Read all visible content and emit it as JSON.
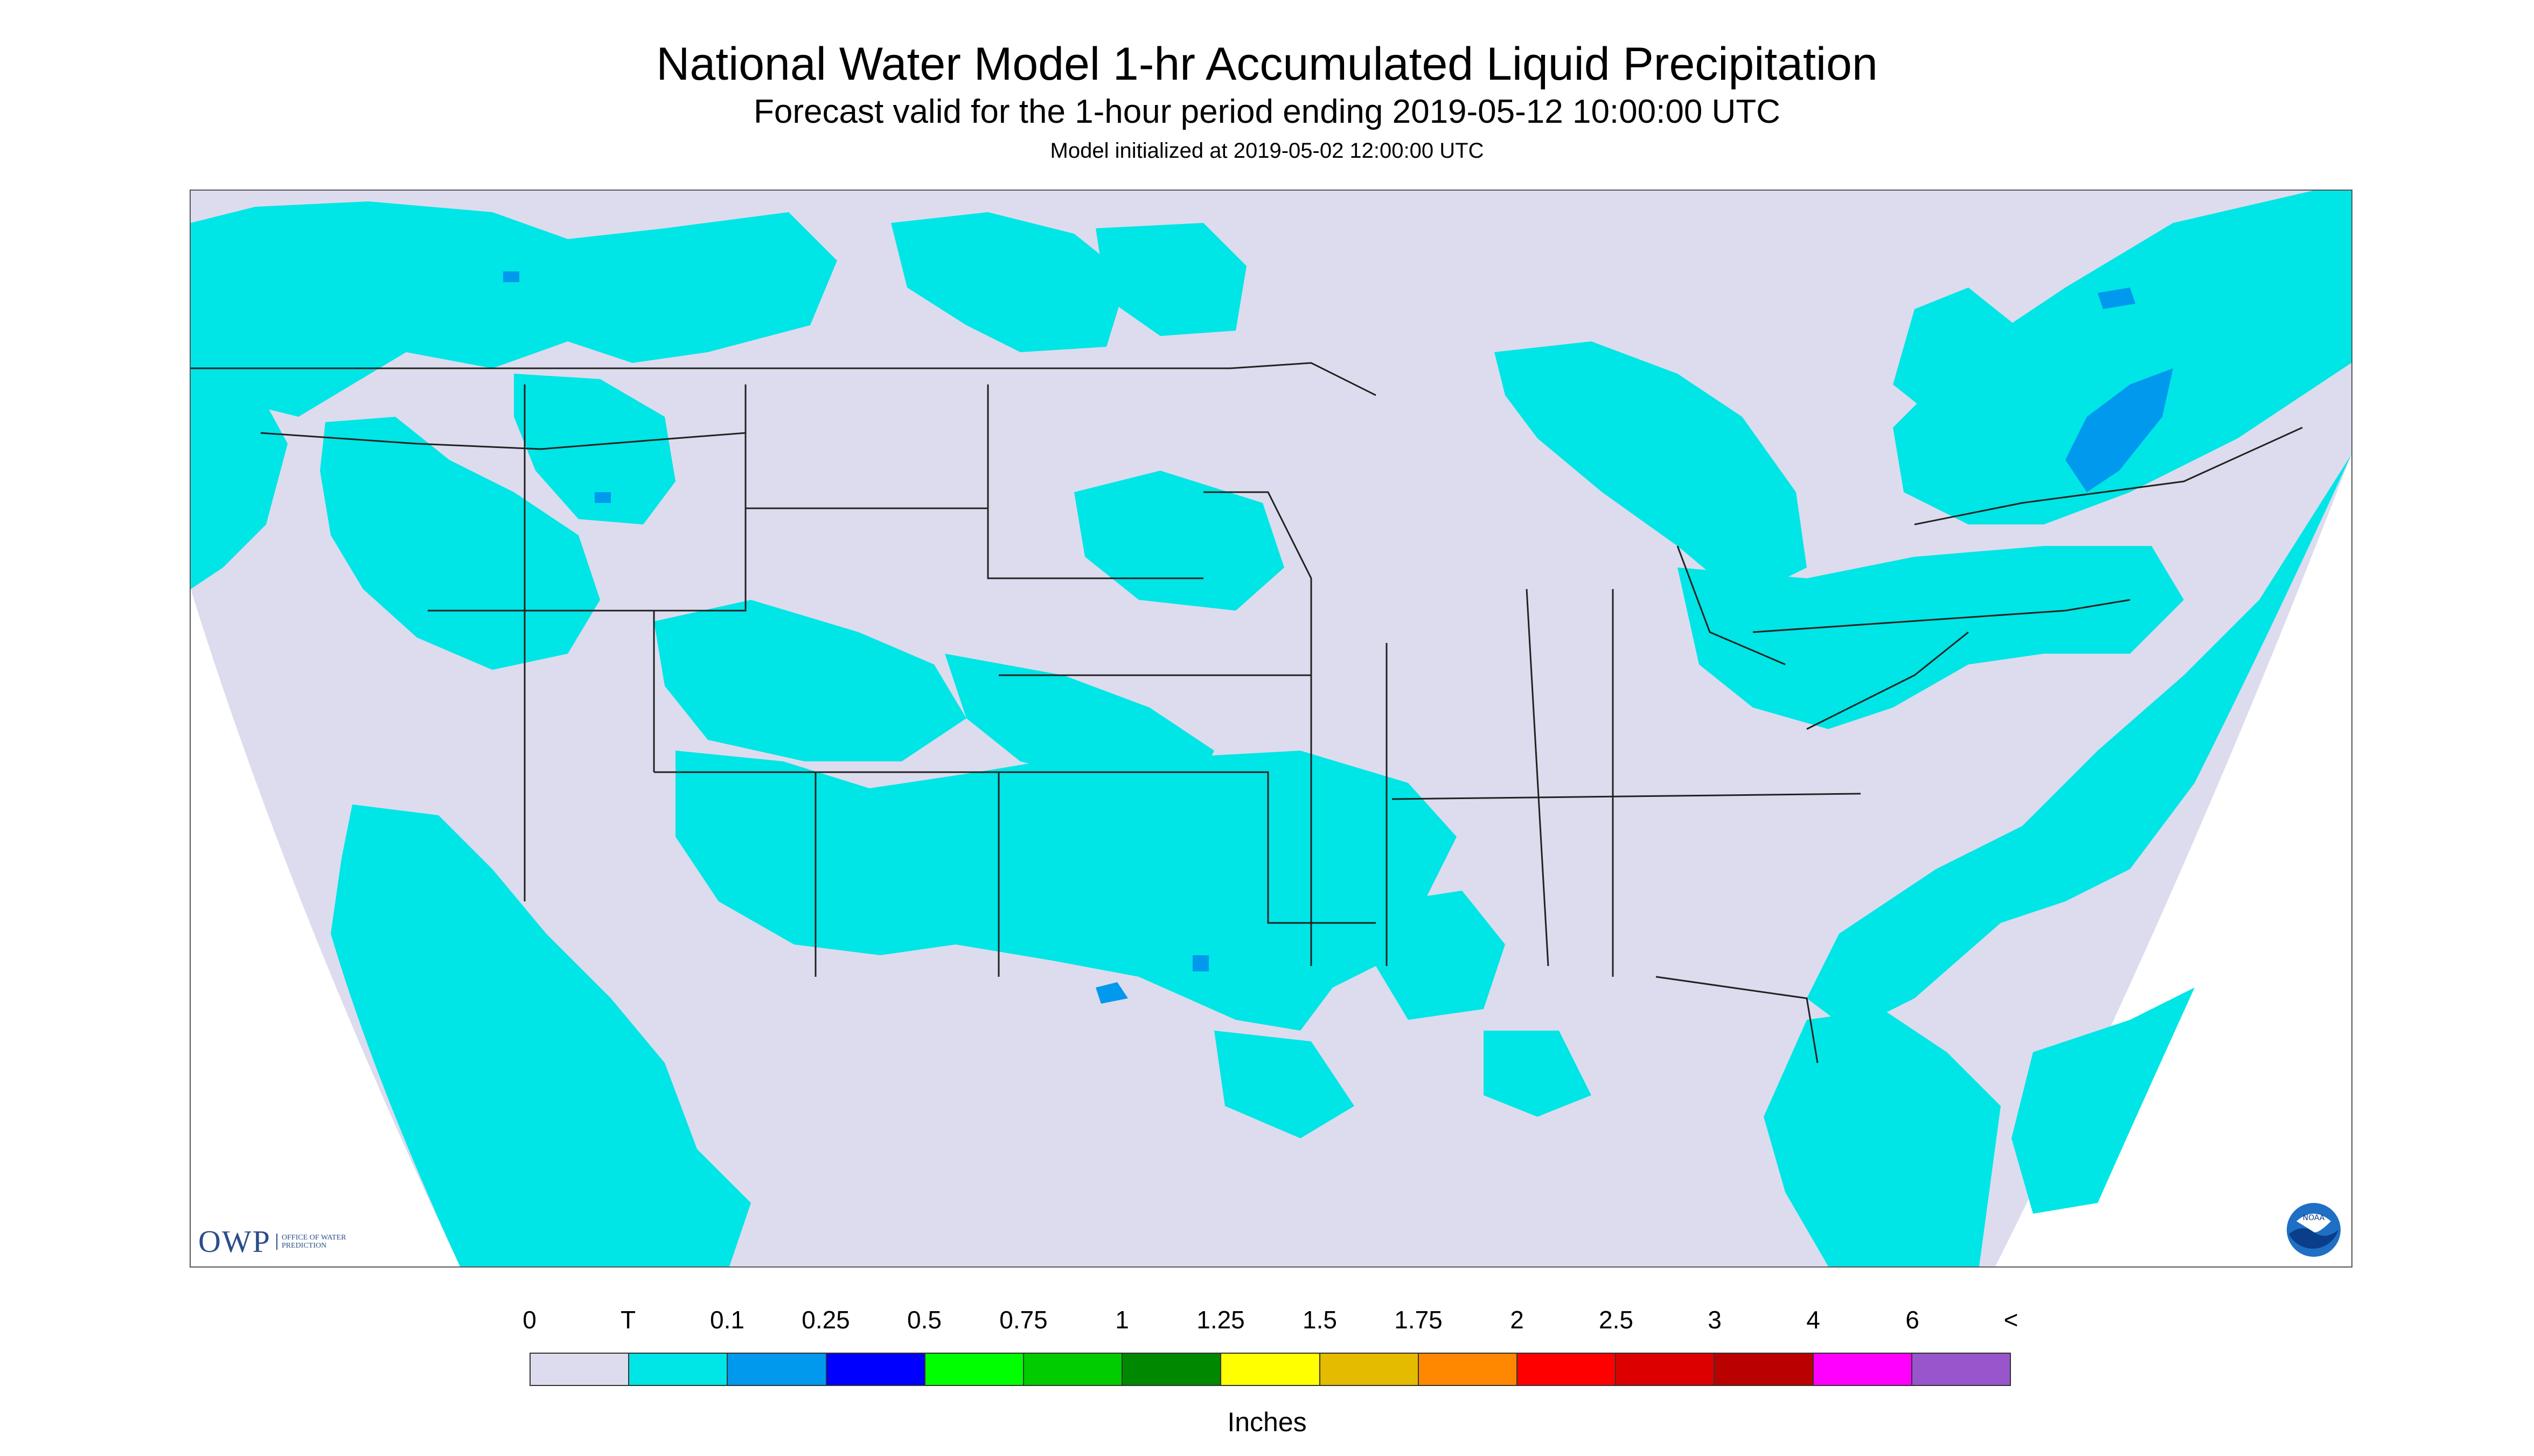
{
  "header": {
    "title": "National Water Model 1-hr Accumulated Liquid Precipitation",
    "subtitle": "Forecast valid for the 1-hour period ending 2019-05-12 10:00:00 UTC",
    "init": "Model initialized at 2019-05-02 12:00:00 UTC"
  },
  "branding": {
    "owp_letters": "OWP",
    "owp_text": "OFFICE OF WATER PREDICTION",
    "noaa_text": "NOAA"
  },
  "legend": {
    "labels": [
      "0",
      "T",
      "0.1",
      "0.25",
      "0.5",
      "0.75",
      "1",
      "1.25",
      "1.5",
      "1.75",
      "2",
      "2.5",
      "3",
      "4",
      "6",
      "<"
    ],
    "colors": [
      "#dcdcee",
      "#00e5e5",
      "#0099ee",
      "#0000ff",
      "#00ff00",
      "#00cc00",
      "#008800",
      "#ffff00",
      "#e5bb00",
      "#ff8800",
      "#ff0000",
      "#dd0000",
      "#bb0000",
      "#ff00ff",
      "#9955cc"
    ],
    "units": "Inches"
  },
  "map": {
    "no_data_color": "#ffffff",
    "land_color": "#dcdcee",
    "trace_color": "#00e5e5",
    "light_color": "#0099ee",
    "border_color": "#222222"
  }
}
